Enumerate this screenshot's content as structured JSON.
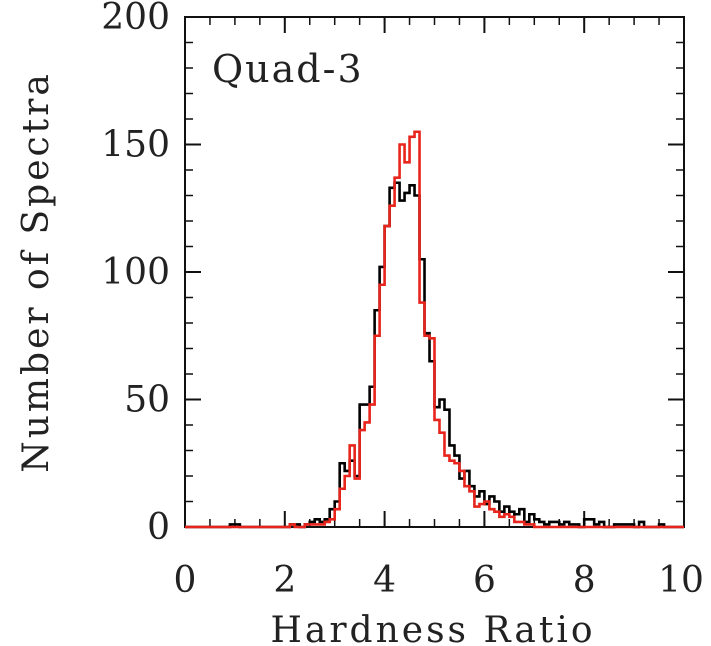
{
  "chart_data": {
    "type": "line",
    "title": "",
    "annotation": "Quad-3",
    "xlabel": "Hardness Ratio",
    "ylabel": "Number of Spectra",
    "xlim": [
      0,
      10
    ],
    "ylim": [
      0,
      200
    ],
    "x_ticks": [
      "0",
      "2",
      "4",
      "6",
      "8",
      "10"
    ],
    "y_ticks": [
      "0",
      "50",
      "100",
      "150",
      "200"
    ],
    "grid": false,
    "legend": "none",
    "bin_width": 0.1,
    "series": [
      {
        "color": "#000000",
        "x": [
          0.8,
          0.9,
          1.0,
          1.1,
          2.0,
          2.1,
          2.2,
          2.3,
          2.4,
          2.5,
          2.6,
          2.7,
          2.8,
          2.9,
          3.0,
          3.1,
          3.2,
          3.3,
          3.4,
          3.5,
          3.6,
          3.7,
          3.8,
          3.9,
          4.0,
          4.1,
          4.2,
          4.3,
          4.4,
          4.5,
          4.6,
          4.7,
          4.8,
          4.9,
          5.0,
          5.1,
          5.2,
          5.3,
          5.4,
          5.5,
          5.6,
          5.7,
          5.8,
          5.9,
          6.0,
          6.1,
          6.2,
          6.3,
          6.4,
          6.5,
          6.6,
          6.7,
          6.8,
          6.9,
          7.0,
          7.1,
          7.2,
          7.3,
          7.4,
          7.5,
          7.6,
          7.7,
          7.8,
          7.9,
          8.0,
          8.1,
          8.2,
          8.3,
          8.4,
          8.5,
          8.6,
          8.7,
          8.8,
          8.9,
          9.0,
          9.1,
          9.2,
          9.3,
          9.4,
          9.5,
          9.6
        ],
        "values": [
          0,
          1,
          1,
          0,
          0,
          1,
          1,
          0,
          1,
          2,
          3,
          2,
          3,
          7,
          10,
          25,
          22,
          26,
          20,
          48,
          48,
          55,
          85,
          102,
          118,
          133,
          135,
          128,
          131,
          134,
          130,
          105,
          76,
          65,
          47,
          50,
          46,
          32,
          28,
          19,
          22,
          16,
          12,
          14,
          9,
          12,
          10,
          6,
          8,
          6,
          5,
          7,
          2,
          5,
          3,
          2,
          1,
          2,
          2,
          1,
          2,
          1,
          1,
          0,
          3,
          3,
          1,
          2,
          0,
          0,
          1,
          1,
          1,
          1,
          0,
          2,
          0,
          0,
          0,
          1,
          0
        ]
      },
      {
        "color": "#e8251c",
        "x": [
          2.0,
          2.1,
          2.2,
          2.3,
          2.4,
          2.5,
          2.6,
          2.7,
          2.8,
          2.9,
          3.0,
          3.1,
          3.2,
          3.3,
          3.4,
          3.5,
          3.6,
          3.7,
          3.8,
          3.9,
          4.0,
          4.1,
          4.2,
          4.3,
          4.4,
          4.5,
          4.6,
          4.7,
          4.8,
          4.9,
          5.0,
          5.1,
          5.2,
          5.3,
          5.4,
          5.5,
          5.6,
          5.7,
          5.8,
          5.9,
          6.0,
          6.1,
          6.2,
          6.3,
          6.4,
          6.5,
          6.6,
          6.7,
          6.8,
          6.9,
          7.0
        ],
        "values": [
          0,
          1,
          0,
          0,
          1,
          1,
          1,
          1,
          2,
          3,
          7,
          15,
          20,
          32,
          19,
          38,
          41,
          48,
          75,
          95,
          118,
          126,
          137,
          150,
          143,
          153,
          155,
          88,
          75,
          74,
          42,
          37,
          28,
          26,
          25,
          22,
          16,
          14,
          8,
          9,
          10,
          7,
          6,
          4,
          5,
          4,
          2,
          2,
          1,
          1,
          0
        ]
      }
    ]
  }
}
